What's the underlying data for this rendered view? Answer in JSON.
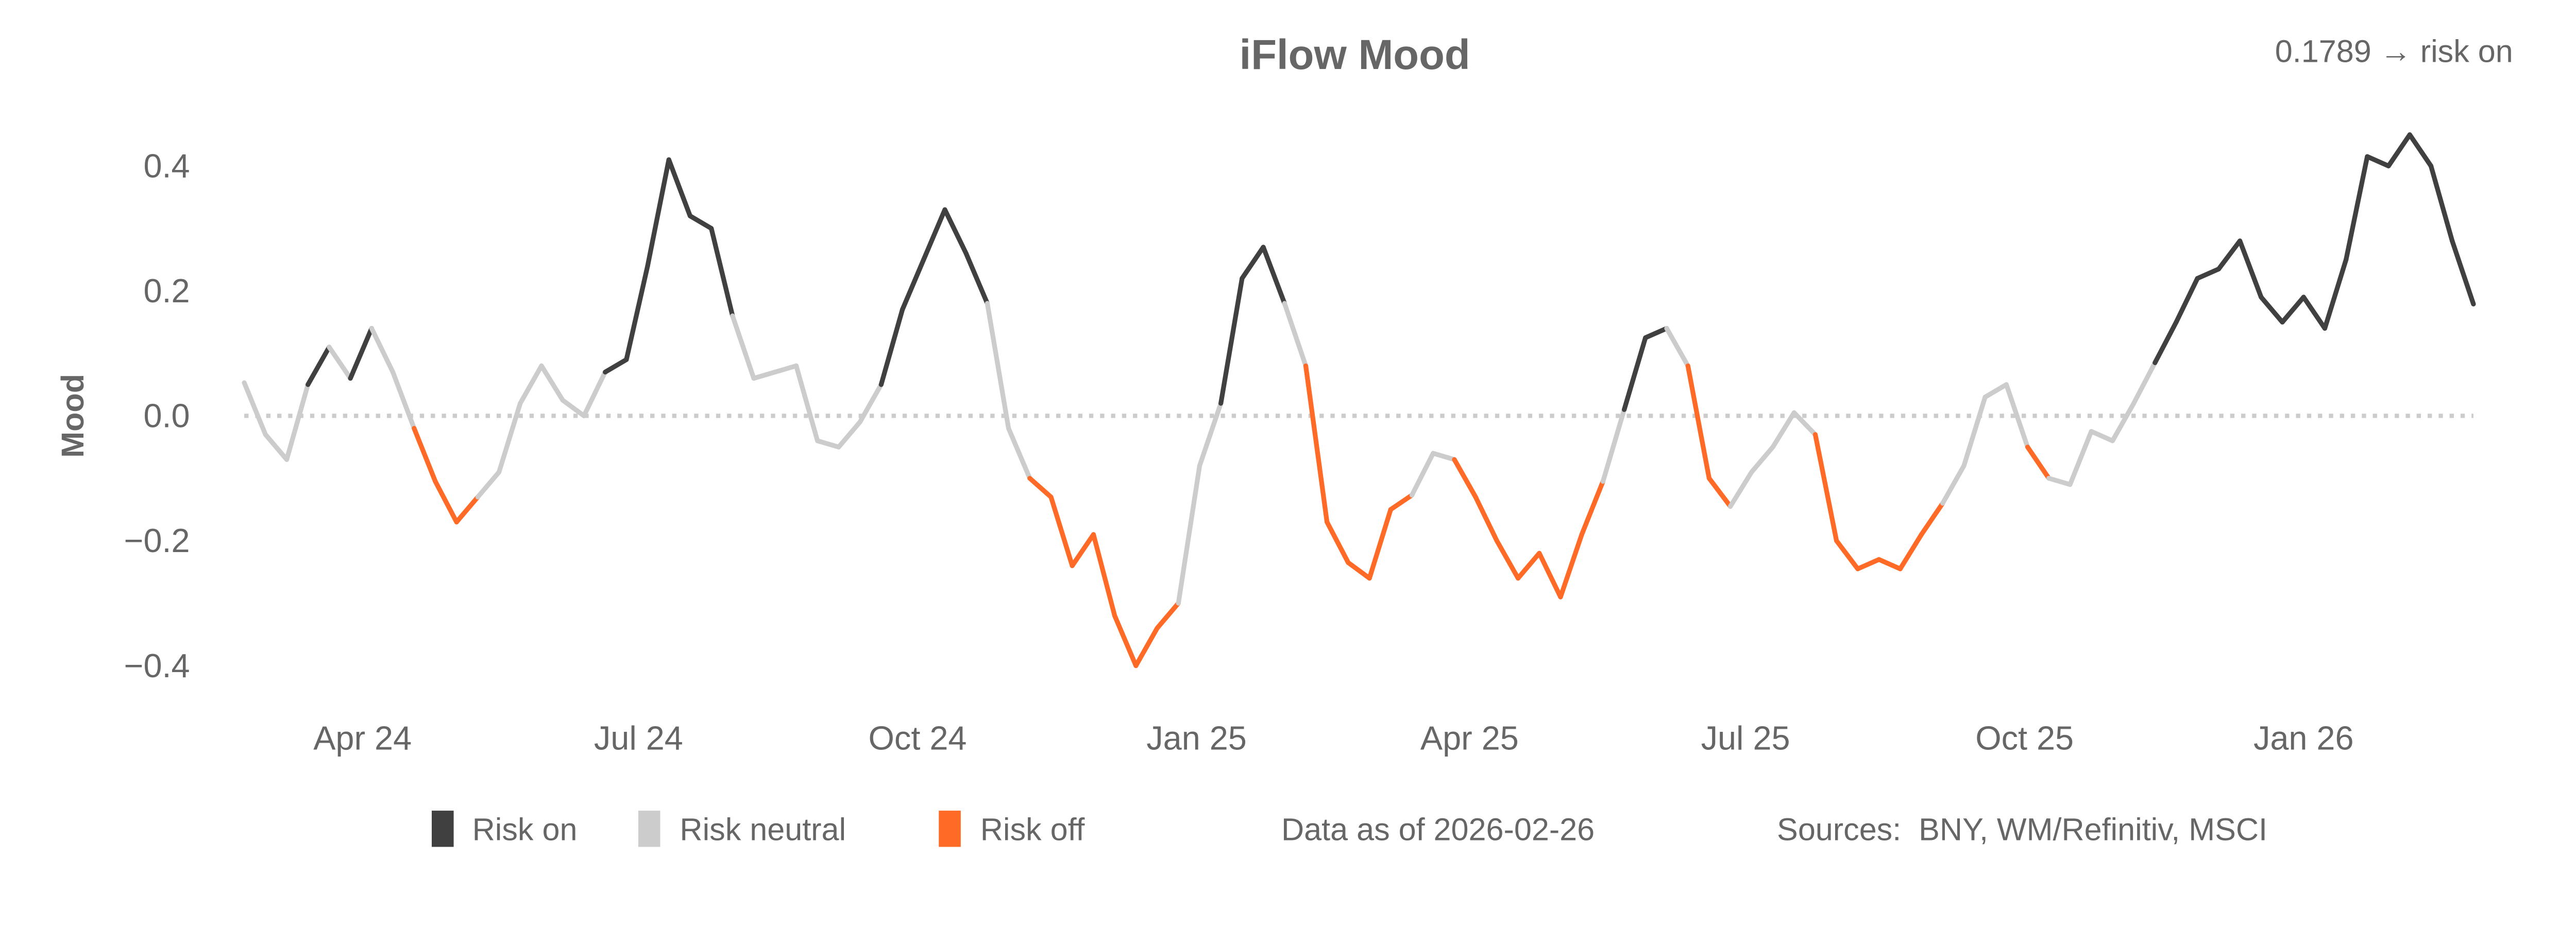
{
  "chart_data": {
    "type": "line",
    "title": "iFlow Mood",
    "annotation": "0.1789 → risk on",
    "ylabel": "Mood",
    "xlabel": "",
    "ylim": [
      -0.46,
      0.47
    ],
    "yticks": [
      0.4,
      0.2,
      0.0,
      -0.2,
      -0.4
    ],
    "ytick_labels": [
      "0.4",
      "0.2",
      "0.0",
      "−0.2",
      "−0.4"
    ],
    "xticks": [
      "2024-04-01",
      "2024-07-01",
      "2024-10-01",
      "2025-01-01",
      "2025-04-01",
      "2025-07-01",
      "2025-10-01",
      "2026-01-01"
    ],
    "xtick_labels": [
      "Apr 24",
      "Jul 24",
      "Oct 24",
      "Jan 25",
      "Apr 25",
      "Jul 25",
      "Oct 25",
      "Jan 26"
    ],
    "xlim": [
      "2024-02-22",
      "2026-02-26"
    ],
    "reference_line": {
      "y": 0.0,
      "style": "dotted"
    },
    "grid": false,
    "regime_colors": {
      "on": "#404040",
      "neutral": "#cccccc",
      "off": "#ff6a26"
    },
    "legend": {
      "placement": "bottom",
      "items": [
        {
          "key": "on",
          "label": "Risk on"
        },
        {
          "key": "neutral",
          "label": "Risk neutral"
        },
        {
          "key": "off",
          "label": "Risk off"
        }
      ]
    },
    "footer": {
      "data_as_of": "Data as of 2026-02-26",
      "sources": "Sources:  BNY, WM/Refinitiv, MSCI"
    },
    "x": [
      "2024-02-22",
      "2024-02-29",
      "2024-03-07",
      "2024-03-14",
      "2024-03-21",
      "2024-03-28",
      "2024-04-04",
      "2024-04-11",
      "2024-04-18",
      "2024-04-25",
      "2024-05-02",
      "2024-05-09",
      "2024-05-16",
      "2024-05-23",
      "2024-05-30",
      "2024-06-06",
      "2024-06-13",
      "2024-06-20",
      "2024-06-27",
      "2024-07-04",
      "2024-07-11",
      "2024-07-18",
      "2024-07-25",
      "2024-08-01",
      "2024-08-08",
      "2024-08-15",
      "2024-08-22",
      "2024-08-29",
      "2024-09-05",
      "2024-09-12",
      "2024-09-19",
      "2024-09-26",
      "2024-10-03",
      "2024-10-10",
      "2024-10-17",
      "2024-10-24",
      "2024-10-31",
      "2024-11-07",
      "2024-11-14",
      "2024-11-21",
      "2024-11-28",
      "2024-12-05",
      "2024-12-12",
      "2024-12-19",
      "2024-12-26",
      "2025-01-02",
      "2025-01-09",
      "2025-01-16",
      "2025-01-23",
      "2025-01-30",
      "2025-02-06",
      "2025-02-13",
      "2025-02-20",
      "2025-02-27",
      "2025-03-06",
      "2025-03-13",
      "2025-03-20",
      "2025-03-27",
      "2025-04-03",
      "2025-04-10",
      "2025-04-17",
      "2025-04-24",
      "2025-05-01",
      "2025-05-08",
      "2025-05-15",
      "2025-05-22",
      "2025-05-29",
      "2025-06-05",
      "2025-06-12",
      "2025-06-19",
      "2025-06-26",
      "2025-07-03",
      "2025-07-10",
      "2025-07-17",
      "2025-07-24",
      "2025-07-31",
      "2025-08-07",
      "2025-08-14",
      "2025-08-21",
      "2025-08-28",
      "2025-09-04",
      "2025-09-11",
      "2025-09-18",
      "2025-09-25",
      "2025-10-02",
      "2025-10-09",
      "2025-10-16",
      "2025-10-23",
      "2025-10-30",
      "2025-11-06",
      "2025-11-13",
      "2025-11-20",
      "2025-11-27",
      "2025-12-04",
      "2025-12-11",
      "2025-12-18",
      "2025-12-25",
      "2026-01-01",
      "2026-01-08",
      "2026-01-15",
      "2026-01-22",
      "2026-01-29",
      "2026-02-05",
      "2026-02-12",
      "2026-02-19",
      "2026-02-26"
    ],
    "values": [
      0.053,
      -0.03,
      -0.07,
      0.05,
      0.11,
      0.06,
      0.14,
      0.07,
      -0.02,
      -0.105,
      -0.17,
      -0.13,
      -0.09,
      0.02,
      0.08,
      0.025,
      0.0,
      0.07,
      0.09,
      0.24,
      0.41,
      0.32,
      0.3,
      0.16,
      0.06,
      0.07,
      0.08,
      -0.04,
      -0.05,
      -0.01,
      0.05,
      0.17,
      0.25,
      0.33,
      0.26,
      0.18,
      -0.02,
      -0.1,
      -0.13,
      -0.24,
      -0.19,
      -0.32,
      -0.4,
      -0.34,
      -0.3,
      -0.08,
      0.02,
      0.22,
      0.27,
      0.18,
      0.08,
      -0.17,
      -0.235,
      -0.26,
      -0.15,
      -0.127,
      -0.06,
      -0.07,
      -0.13,
      -0.2,
      -0.26,
      -0.22,
      -0.29,
      -0.19,
      -0.105,
      0.01,
      0.125,
      0.14,
      0.08,
      -0.1,
      -0.145,
      -0.09,
      -0.05,
      0.005,
      -0.03,
      -0.2,
      -0.245,
      -0.23,
      -0.245,
      -0.19,
      -0.14,
      -0.08,
      0.03,
      0.05,
      -0.05,
      -0.1,
      -0.11,
      -0.025,
      -0.04,
      0.02,
      0.085,
      0.15,
      0.22,
      0.235,
      0.28,
      0.19,
      0.15,
      0.19,
      0.14,
      0.25,
      0.415,
      0.4,
      0.45,
      0.4,
      0.28,
      0.1789
    ],
    "regime": [
      "neutral",
      "neutral",
      "neutral",
      "neutral",
      "on",
      "neutral",
      "on",
      "neutral",
      "neutral",
      "off",
      "off",
      "off",
      "neutral",
      "neutral",
      "neutral",
      "neutral",
      "neutral",
      "neutral",
      "on",
      "on",
      "on",
      "on",
      "on",
      "on",
      "neutral",
      "neutral",
      "neutral",
      "neutral",
      "neutral",
      "neutral",
      "neutral",
      "on",
      "on",
      "on",
      "on",
      "on",
      "neutral",
      "neutral",
      "off",
      "off",
      "off",
      "off",
      "off",
      "off",
      "off",
      "neutral",
      "neutral",
      "on",
      "on",
      "on",
      "neutral",
      "off",
      "off",
      "off",
      "off",
      "off",
      "neutral",
      "neutral",
      "off",
      "off",
      "off",
      "off",
      "off",
      "off",
      "off",
      "neutral",
      "on",
      "on",
      "neutral",
      "off",
      "off",
      "neutral",
      "neutral",
      "neutral",
      "neutral",
      "off",
      "off",
      "off",
      "off",
      "off",
      "off",
      "neutral",
      "neutral",
      "neutral",
      "neutral",
      "off",
      "neutral",
      "neutral",
      "neutral",
      "neutral",
      "neutral",
      "on",
      "on",
      "on",
      "on",
      "on",
      "on",
      "on",
      "on",
      "on",
      "on",
      "on",
      "on",
      "on",
      "on",
      "on"
    ]
  }
}
